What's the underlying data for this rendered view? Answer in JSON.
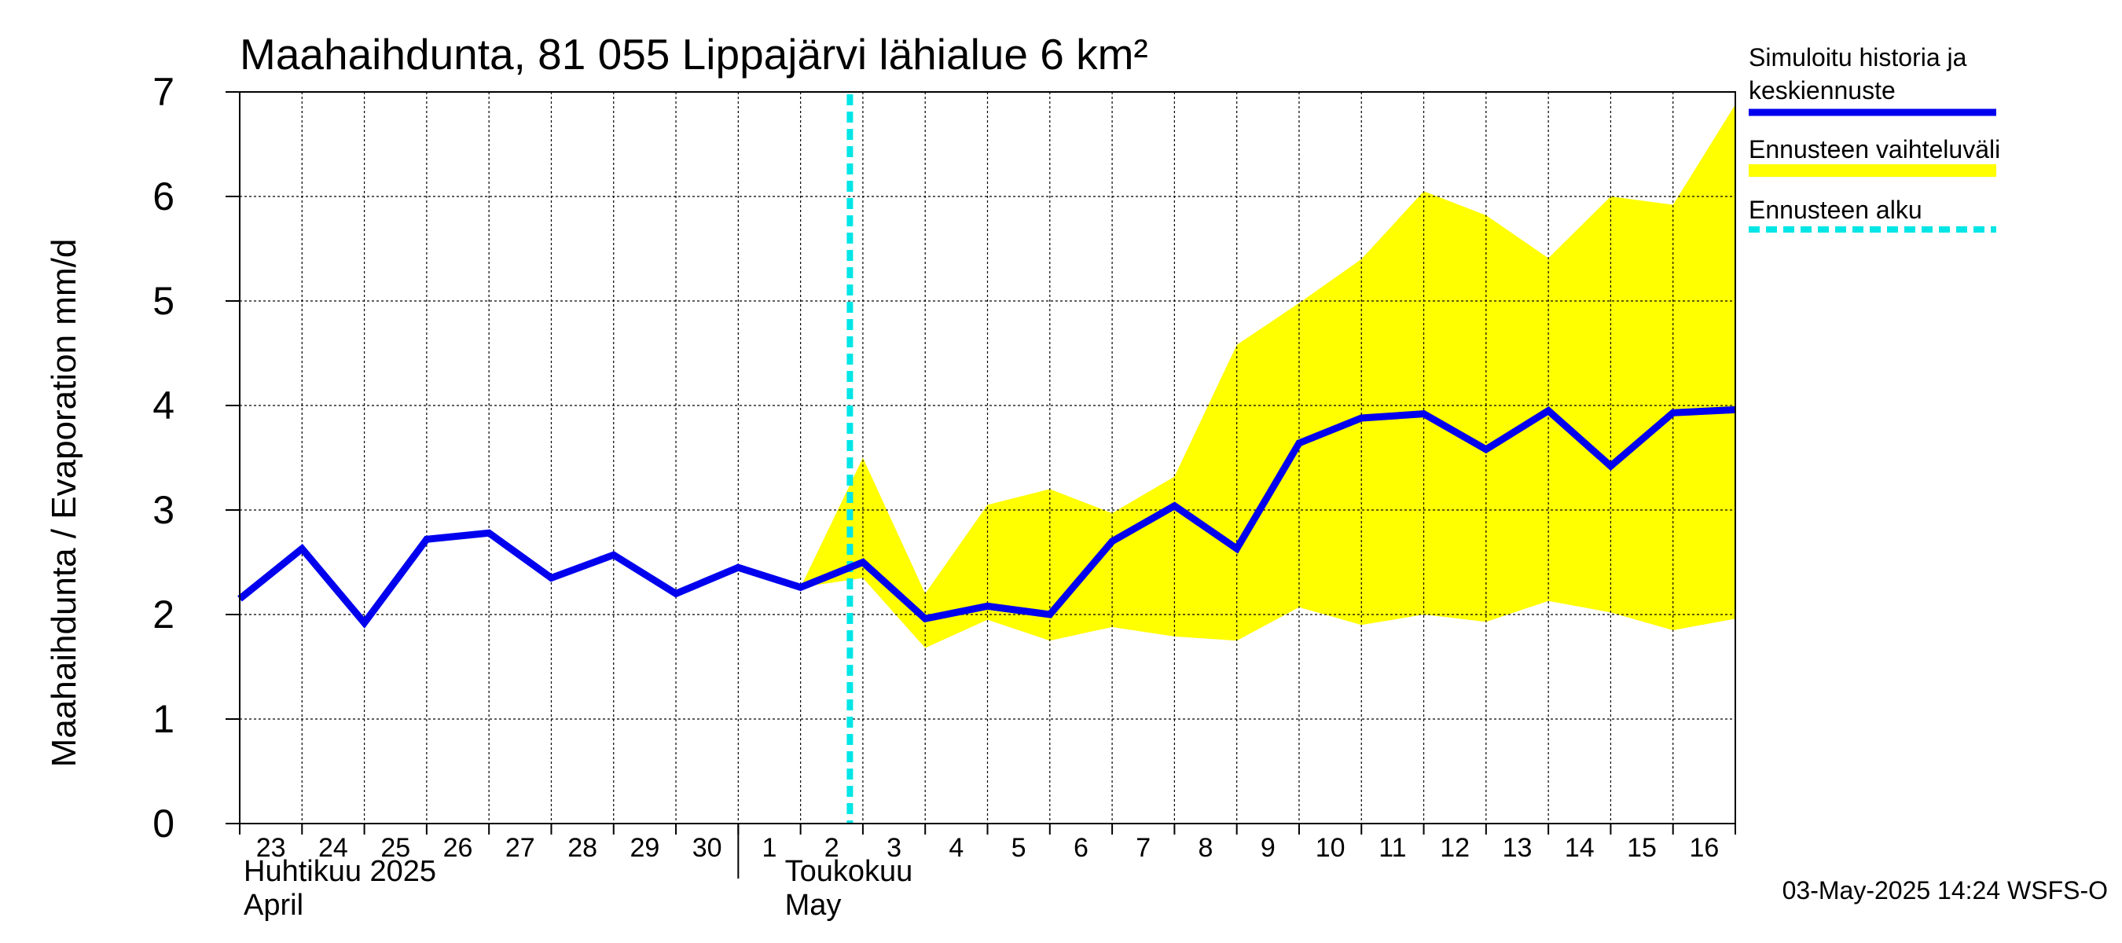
{
  "chart_data": {
    "type": "line",
    "title": "Maahaihdunta, 81 055 Lippajärvi lähialue 6 km²",
    "ylabel": "Maahaihdunta / Evaporation   mm/d",
    "ylim": [
      0,
      7
    ],
    "yticks": [
      0,
      1,
      2,
      3,
      4,
      5,
      6,
      7
    ],
    "grid": true,
    "x_tick_labels": [
      "23",
      "24",
      "25",
      "26",
      "27",
      "28",
      "29",
      "30",
      "1",
      "2",
      "3",
      "4",
      "5",
      "6",
      "7",
      "8",
      "9",
      "10",
      "11",
      "12",
      "13",
      "14",
      "15",
      "16"
    ],
    "month_labels": [
      {
        "line1": "Huhtikuu  2025",
        "line2": "April"
      },
      {
        "line1": "Toukokuu",
        "line2": "May"
      }
    ],
    "x": [
      "2025-04-23",
      "2025-04-24",
      "2025-04-25",
      "2025-04-26",
      "2025-04-27",
      "2025-04-28",
      "2025-04-29",
      "2025-04-30",
      "2025-05-01",
      "2025-05-02",
      "2025-05-03",
      "2025-05-04",
      "2025-05-05",
      "2025-05-06",
      "2025-05-07",
      "2025-05-08",
      "2025-05-09",
      "2025-05-10",
      "2025-05-11",
      "2025-05-12",
      "2025-05-13",
      "2025-05-14",
      "2025-05-15",
      "2025-05-16",
      "2025-05-17"
    ],
    "series": [
      {
        "name": "Simuloitu historia ja keskiennuste",
        "color": "#0000ee",
        "values": [
          2.15,
          2.63,
          1.92,
          2.72,
          2.78,
          2.35,
          2.57,
          2.2,
          2.45,
          2.26,
          2.5,
          1.96,
          2.08,
          2.0,
          2.7,
          3.04,
          2.63,
          3.64,
          3.88,
          3.92,
          3.58,
          3.95,
          3.42,
          3.93,
          3.96
        ]
      },
      {
        "name": "Ennusteen vaihteluväli",
        "color": "#ffff00",
        "x": [
          "2025-05-02",
          "2025-05-03",
          "2025-05-04",
          "2025-05-05",
          "2025-05-06",
          "2025-05-07",
          "2025-05-08",
          "2025-05-09",
          "2025-05-10",
          "2025-05-11",
          "2025-05-12",
          "2025-05-13",
          "2025-05-14",
          "2025-05-15",
          "2025-05-16",
          "2025-05-17"
        ],
        "lower": [
          2.26,
          2.35,
          1.68,
          1.95,
          1.75,
          1.88,
          1.79,
          1.75,
          2.07,
          1.9,
          2.0,
          1.93,
          2.13,
          2.02,
          1.85,
          1.96
        ],
        "upper": [
          2.26,
          3.5,
          2.2,
          3.05,
          3.2,
          2.97,
          3.32,
          4.58,
          4.98,
          5.4,
          6.05,
          5.82,
          5.41,
          6.0,
          5.92,
          6.88
        ]
      }
    ],
    "forecast_start": "2025-05-02T19:00",
    "forecast_start_color": "#00e5e5",
    "legend": {
      "placement": "right",
      "items": [
        {
          "label_lines": [
            "Simuloitu historia ja",
            "keskiennuste"
          ],
          "color": "#0000ee",
          "style": "solid"
        },
        {
          "label_lines": [
            "Ennusteen vaihteluväli"
          ],
          "color": "#ffff00",
          "style": "band"
        },
        {
          "label_lines": [
            "Ennusteen alku"
          ],
          "color": "#00e5e5",
          "style": "dashed"
        }
      ]
    },
    "timestamp": "03-May-2025 14:24 WSFS-O"
  }
}
